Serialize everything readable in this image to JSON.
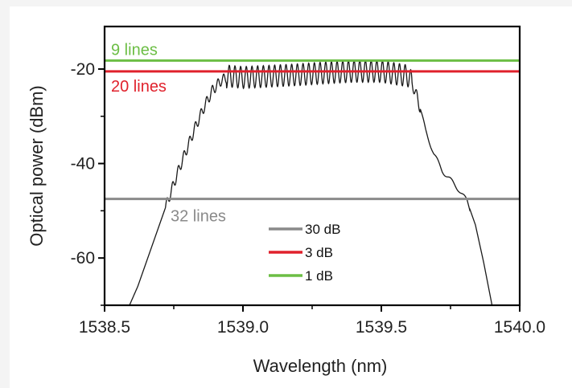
{
  "chart_data": {
    "type": "line",
    "xlabel": "Wavelength (nm)",
    "ylabel": "Optical power (dBm)",
    "xlim": [
      1538.5,
      1540.0
    ],
    "ylim": [
      -70,
      -11
    ],
    "x_ticks": [
      1538.5,
      1539.0,
      1539.5,
      1540.0
    ],
    "x_tick_labels": [
      "1538.5",
      "1539.0",
      "1539.5",
      "1540.0"
    ],
    "y_ticks": [
      -20,
      -40,
      -60
    ],
    "y_tick_labels": [
      "-20",
      "-40",
      "-60"
    ],
    "grid": false,
    "spectrum": {
      "color": "#1a1a1a",
      "x": [
        1538.59,
        1538.62,
        1538.65,
        1538.68,
        1538.71,
        1538.74,
        1538.77,
        1538.8,
        1538.83,
        1538.86,
        1538.89,
        1538.92,
        1538.95,
        1539.0,
        1539.1,
        1539.2,
        1539.3,
        1539.4,
        1539.5,
        1539.55,
        1539.6,
        1539.63,
        1539.66,
        1539.69,
        1539.72,
        1539.75,
        1539.78,
        1539.81,
        1539.84,
        1539.87,
        1539.9
      ],
      "y": [
        -70,
        -66,
        -61,
        -56,
        -51,
        -46,
        -41,
        -36.5,
        -32,
        -28,
        -24.5,
        -22.5,
        -21.5,
        -21.8,
        -21.5,
        -21.2,
        -20.8,
        -20.5,
        -20.5,
        -21,
        -21.5,
        -26,
        -33,
        -38,
        -41.5,
        -43.5,
        -45.5,
        -48,
        -53,
        -61,
        -70
      ]
    },
    "threshold_lines": [
      {
        "y": -18.2,
        "label": "9 lines",
        "color": "#6cbe45"
      },
      {
        "y": -20.5,
        "label": "20 lines",
        "color": "#e0212c"
      },
      {
        "y": -47.5,
        "label": "32 lines",
        "color": "#8a8a8a"
      }
    ],
    "legend": {
      "placement": "center-bottom",
      "entries": [
        {
          "label": "30 dB",
          "color": "#8a8a8a"
        },
        {
          "label": "3 dB",
          "color": "#e0212c"
        },
        {
          "label": "1 dB",
          "color": "#6cbe45"
        }
      ]
    }
  }
}
